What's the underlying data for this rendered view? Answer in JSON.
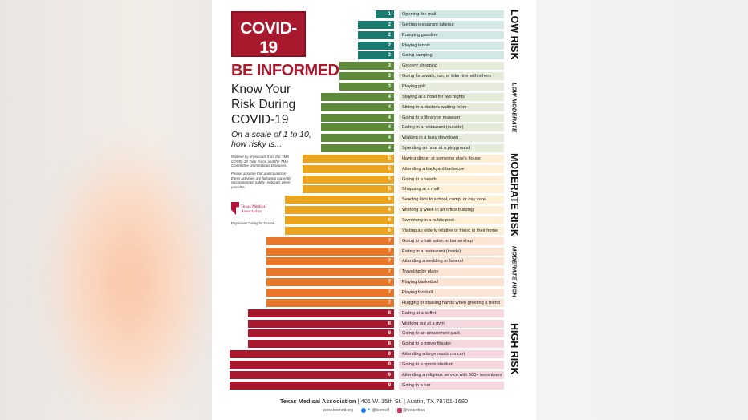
{
  "header": {
    "logo_title": "COVID-19",
    "logo_subtitle": "CORONAVIRUS DISEASE",
    "headline": "BE INFORMED:",
    "title": "Know Your Risk During COVID-19",
    "question": "On a scale of 1 to 10, how risky is...",
    "note1": "Ranked by physicians from the TMA COVID-19 Task Force and the TMA Committee on Infectious Diseases.",
    "note2": "Please assume that participants in these activities are following currently recommended safety protocols when possible.",
    "org_logo_text": "Texas Medical Association",
    "org_tagline": "Physicians Caring for Texans"
  },
  "colors": {
    "low": "#1b7a6f",
    "low_moderate": "#5e8b3a",
    "moderate": "#eaa41d",
    "moderate_high": "#e8772a",
    "high": "#a8192e",
    "low_bg": "#d3e8e5",
    "low_moderate_bg": "#e5ebd9",
    "moderate_bg": "#fdf0d6",
    "moderate_high_bg": "#fce4d4",
    "high_bg": "#f5d7de"
  },
  "chart_data": {
    "type": "bar",
    "orientation": "horizontal",
    "xlim": [
      0,
      9
    ],
    "categories_bands": [
      {
        "label": "LOW RISK",
        "style": "major",
        "levels": [
          1,
          2
        ]
      },
      {
        "label": "LOW-MODERATE",
        "style": "minor",
        "levels": [
          3,
          4
        ]
      },
      {
        "label": "MODERATE RISK",
        "style": "major",
        "levels": [
          5,
          6
        ]
      },
      {
        "label": "MODERATE-HIGH",
        "style": "minor",
        "levels": [
          7
        ]
      },
      {
        "label": "HIGH RISK",
        "style": "major",
        "levels": [
          8,
          9
        ]
      }
    ],
    "items": [
      {
        "label": "Opening the mail",
        "value": 1
      },
      {
        "label": "Getting restaurant takeout",
        "value": 2
      },
      {
        "label": "Pumping gasoline",
        "value": 2
      },
      {
        "label": "Playing tennis",
        "value": 2
      },
      {
        "label": "Going camping",
        "value": 2
      },
      {
        "label": "Grocery shopping",
        "value": 3
      },
      {
        "label": "Going for a walk, run, or bike ride with others",
        "value": 3
      },
      {
        "label": "Playing golf",
        "value": 3
      },
      {
        "label": "Staying at a hotel for two nights",
        "value": 4
      },
      {
        "label": "Sitting in a doctor's waiting room",
        "value": 4
      },
      {
        "label": "Going to a library or museum",
        "value": 4
      },
      {
        "label": "Eating in a restaurant (outside)",
        "value": 4
      },
      {
        "label": "Walking in a busy downtown",
        "value": 4
      },
      {
        "label": "Spending an hour at a playground",
        "value": 4
      },
      {
        "label": "Having dinner at someone else's house",
        "value": 5
      },
      {
        "label": "Attending a backyard barbecue",
        "value": 5
      },
      {
        "label": "Going to a beach",
        "value": 5
      },
      {
        "label": "Shopping at a mall",
        "value": 5
      },
      {
        "label": "Sending kids to school, camp, or day care",
        "value": 6
      },
      {
        "label": "Working a week in an office building",
        "value": 6
      },
      {
        "label": "Swimming in a public pool",
        "value": 6
      },
      {
        "label": "Visiting an elderly relative or friend in their home",
        "value": 6
      },
      {
        "label": "Going to a hair salon or barbershop",
        "value": 7
      },
      {
        "label": "Eating in a restaurant (inside)",
        "value": 7
      },
      {
        "label": "Attending a wedding or funeral",
        "value": 7
      },
      {
        "label": "Traveling by plane",
        "value": 7
      },
      {
        "label": "Playing basketball",
        "value": 7
      },
      {
        "label": "Playing football",
        "value": 7
      },
      {
        "label": "Hugging or shaking hands when greeting a friend",
        "value": 7
      },
      {
        "label": "Eating at a buffet",
        "value": 8
      },
      {
        "label": "Working out at a gym",
        "value": 8
      },
      {
        "label": "Going to an amusement park",
        "value": 8
      },
      {
        "label": "Going to a movie theater",
        "value": 8
      },
      {
        "label": "Attending a large music concert",
        "value": 9
      },
      {
        "label": "Going to a sports stadium",
        "value": 9
      },
      {
        "label": "Attending a religious service with 500+ worshipers",
        "value": 9
      },
      {
        "label": "Going to a bar",
        "value": 9
      }
    ]
  },
  "footer": {
    "org": "Texas Medical Association",
    "address": "401 W. 15th St.",
    "city": "Austin, TX 78701-1680",
    "website": "www.texmed.org",
    "twitter": "@texmed",
    "instagram": "@wearetma",
    "sep": "|"
  }
}
